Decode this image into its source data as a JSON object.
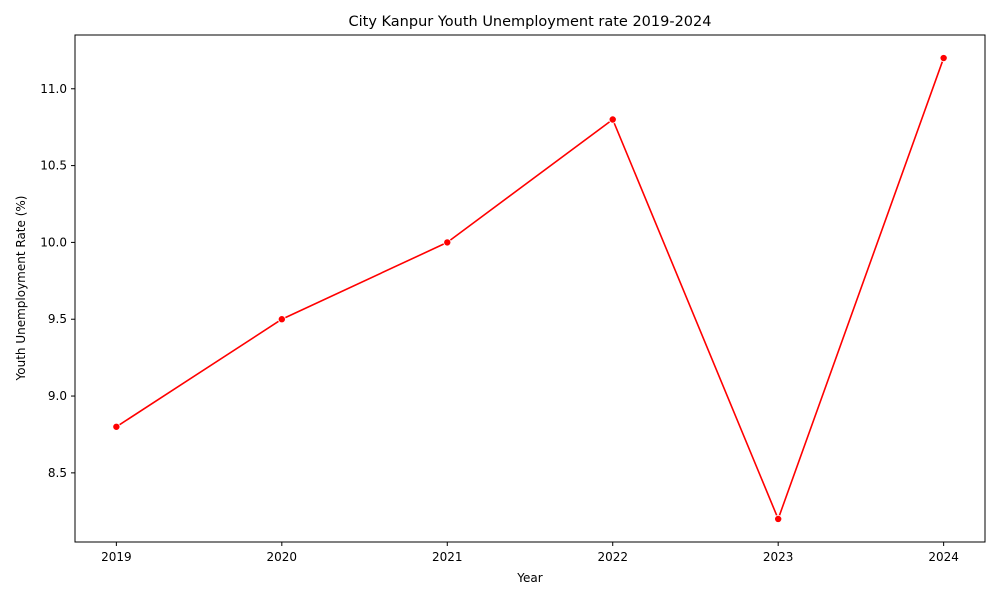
{
  "chart_data": {
    "type": "line",
    "title": "City Kanpur Youth Unemployment rate 2019-2024",
    "xlabel": "Year",
    "ylabel": "Youth Unemployment Rate (%)",
    "x": [
      2019,
      2020,
      2021,
      2022,
      2023,
      2024
    ],
    "x_tick_labels": [
      "2019",
      "2020",
      "2021",
      "2022",
      "2023",
      "2024"
    ],
    "series": [
      {
        "values": [
          8.8,
          9.5,
          10.0,
          10.8,
          8.2,
          11.2
        ],
        "color": "#ff0000",
        "marker": "circle"
      }
    ],
    "y_ticks": [
      8.5,
      9.0,
      9.5,
      10.0,
      10.5,
      11.0
    ],
    "y_tick_labels": [
      "8.5",
      "9.0",
      "9.5",
      "10.0",
      "10.5",
      "11.0"
    ],
    "xlim": [
      2018.75,
      2024.25
    ],
    "ylim": [
      8.05,
      11.35
    ],
    "grid": false,
    "legend": "none"
  }
}
